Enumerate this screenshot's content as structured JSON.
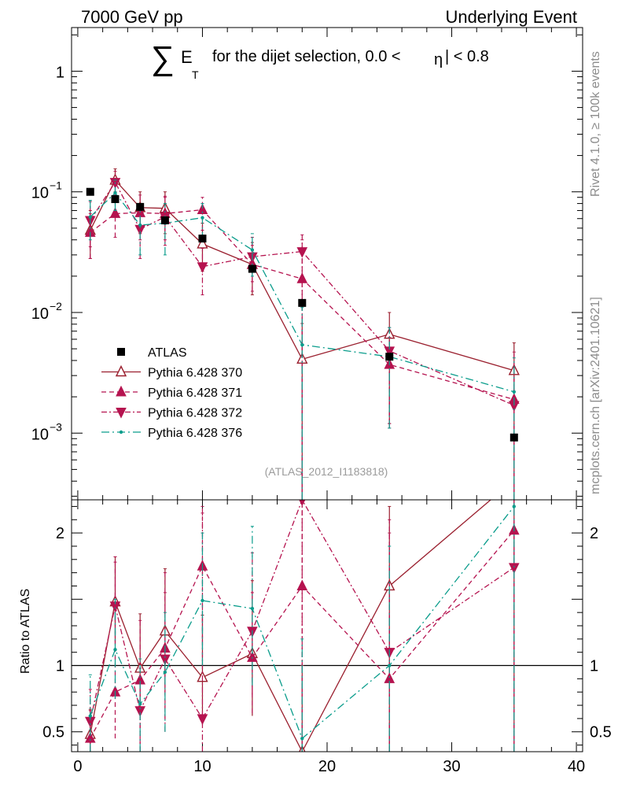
{
  "header": {
    "left": "7000 GeV pp",
    "right": "Underlying Event"
  },
  "side_labels": {
    "rivet": "Rivet 4.1.0, ≥ 100k events",
    "mcplots": "mcplots.cern.ch [arXiv:2401.10621]"
  },
  "chart_data": {
    "type": "scatter",
    "title": {
      "sigma": "∑",
      "et": "E",
      "et_sub": "T",
      "text": "for the dijet selection, 0.0 <",
      "eta": "η",
      "end": "| < 0.8"
    },
    "watermark": "(ATLAS_2012_I1183818)",
    "legend_placement": "bottom-left",
    "colors": {
      "atlas": "#000000",
      "p370": "#9a1f2e",
      "p371": "#b5134f",
      "p372": "#b5134f",
      "p376": "#0b9d8c"
    },
    "main": {
      "scale": "log",
      "ylim": [
        0.00028,
        2.3
      ],
      "ticks": [
        {
          "value": 0.001,
          "base": "10",
          "exp": "−3"
        },
        {
          "value": 0.01,
          "base": "10",
          "exp": "−2"
        },
        {
          "value": 0.1,
          "base": "10",
          "exp": "−1"
        },
        {
          "value": 1,
          "base": "1",
          "exp": ""
        }
      ]
    },
    "ratio": {
      "ylabel": "Ratio to ATLAS",
      "ylim": [
        0.35,
        2.25
      ],
      "ticks": [
        {
          "value": 0.5,
          "label": "0.5"
        },
        {
          "value": 1,
          "label": "1"
        },
        {
          "value": 2,
          "label": "2"
        }
      ]
    },
    "xlim": [
      -0.5,
      40.5
    ],
    "x_ticks": [
      0,
      10,
      20,
      30,
      40
    ],
    "x_tick_labels": [
      "0",
      "10",
      "20",
      "30",
      "40"
    ],
    "series": [
      {
        "id": "atlas",
        "name": "ATLAS",
        "marker": "square",
        "line": "none",
        "x": [
          1,
          3,
          5,
          7,
          10,
          14,
          18,
          25,
          35
        ],
        "y": [
          0.1,
          0.087,
          0.075,
          0.058,
          0.041,
          0.023,
          0.012,
          0.0043,
          0.00092
        ]
      },
      {
        "id": "p370",
        "name": "Pythia 6.428 370",
        "marker": "triangle-up-open",
        "line": "solid",
        "x": [
          1,
          3,
          5,
          7,
          10,
          14,
          18,
          25,
          35
        ],
        "y": [
          0.048,
          0.125,
          0.074,
          0.073,
          0.037,
          0.025,
          0.0041,
          0.0066,
          0.0033
        ],
        "ylo": [
          0.028,
          0.1,
          0.045,
          0.045,
          0.022,
          0.014,
          0.0001,
          0.0012,
          0.0001
        ],
        "yhi": [
          0.07,
          0.155,
          0.1,
          0.1,
          0.055,
          0.038,
          0.0081,
          0.01,
          0.0056
        ],
        "ratio": [
          0.48,
          1.48,
          0.98,
          1.26,
          0.91,
          1.09,
          0.35,
          1.6,
          2.4
        ],
        "rlo": [
          0.35,
          1.18,
          0.6,
          0.8,
          0.55,
          0.62,
          0.35,
          0.35,
          0.35
        ],
        "rhi": [
          0.67,
          1.82,
          1.39,
          1.73,
          1.38,
          1.64,
          1.0,
          2.2,
          2.5
        ]
      },
      {
        "id": "p371",
        "name": "Pythia 6.428 371",
        "marker": "triangle-up",
        "line": "dashed",
        "x": [
          1,
          3,
          5,
          7,
          10,
          14,
          18,
          25,
          35
        ],
        "y": [
          0.046,
          0.066,
          0.067,
          0.066,
          0.071,
          0.025,
          0.019,
          0.0037,
          0.0019
        ],
        "ylo": [
          0.028,
          0.042,
          0.04,
          0.04,
          0.048,
          0.015,
          0.0001,
          0.0012,
          0.0001
        ],
        "yhi": [
          0.066,
          0.09,
          0.094,
          0.092,
          0.09,
          0.036,
          0.04,
          0.0062,
          0.0047
        ],
        "ratio": [
          0.45,
          0.8,
          0.89,
          1.13,
          1.75,
          1.06,
          1.6,
          0.9,
          2.02
        ],
        "rlo": [
          0.35,
          0.45,
          0.35,
          0.6,
          1.2,
          0.64,
          0.35,
          0.35,
          0.35
        ],
        "rhi": [
          0.66,
          1.82,
          1.34,
          1.7,
          2.2,
          1.55,
          2.25,
          2.1,
          2.25
        ]
      },
      {
        "id": "p372",
        "name": "Pythia 6.428 372",
        "marker": "triangle-down",
        "line": "dash-dot",
        "x": [
          1,
          3,
          5,
          7,
          10,
          14,
          18,
          25,
          35
        ],
        "y": [
          0.058,
          0.12,
          0.049,
          0.062,
          0.024,
          0.029,
          0.032,
          0.0048,
          0.0017
        ],
        "ylo": [
          0.035,
          0.094,
          0.028,
          0.036,
          0.014,
          0.018,
          0.0001,
          0.0011,
          0.0001
        ],
        "yhi": [
          0.083,
          0.148,
          0.07,
          0.09,
          0.034,
          0.042,
          0.044,
          0.0075,
          0.0035
        ],
        "ratio": [
          0.58,
          1.45,
          0.66,
          1.05,
          0.6,
          1.26,
          2.25,
          1.1,
          1.74
        ],
        "rlo": [
          0.35,
          1.15,
          0.35,
          0.5,
          0.35,
          0.78,
          0.35,
          0.35,
          0.35
        ],
        "rhi": [
          0.82,
          1.78,
          0.98,
          1.55,
          2.15,
          1.85,
          2.25,
          2.0,
          2.25
        ]
      },
      {
        "id": "p376",
        "name": "Pythia 6.428 376",
        "marker": "dot",
        "line": "dash-dot-sparse",
        "x": [
          1,
          3,
          5,
          7,
          10,
          14,
          18,
          25,
          35
        ],
        "y": [
          0.062,
          0.098,
          0.053,
          0.055,
          0.061,
          0.033,
          0.0054,
          0.0043,
          0.0022
        ],
        "ylo": [
          0.04,
          0.07,
          0.03,
          0.03,
          0.04,
          0.02,
          0.0001,
          0.0011,
          0.0001
        ],
        "yhi": [
          0.085,
          0.125,
          0.075,
          0.08,
          0.08,
          0.045,
          0.011,
          0.0075,
          0.0042
        ],
        "ratio": [
          0.62,
          1.12,
          0.71,
          0.95,
          1.49,
          1.43,
          0.45,
          1.0,
          2.2
        ],
        "rlo": [
          0.35,
          0.75,
          0.35,
          0.5,
          1.0,
          0.85,
          0.35,
          0.35,
          0.35
        ],
        "rhi": [
          0.93,
          1.5,
          1.05,
          1.4,
          2.0,
          2.05,
          1.2,
          1.9,
          2.25
        ]
      }
    ]
  }
}
